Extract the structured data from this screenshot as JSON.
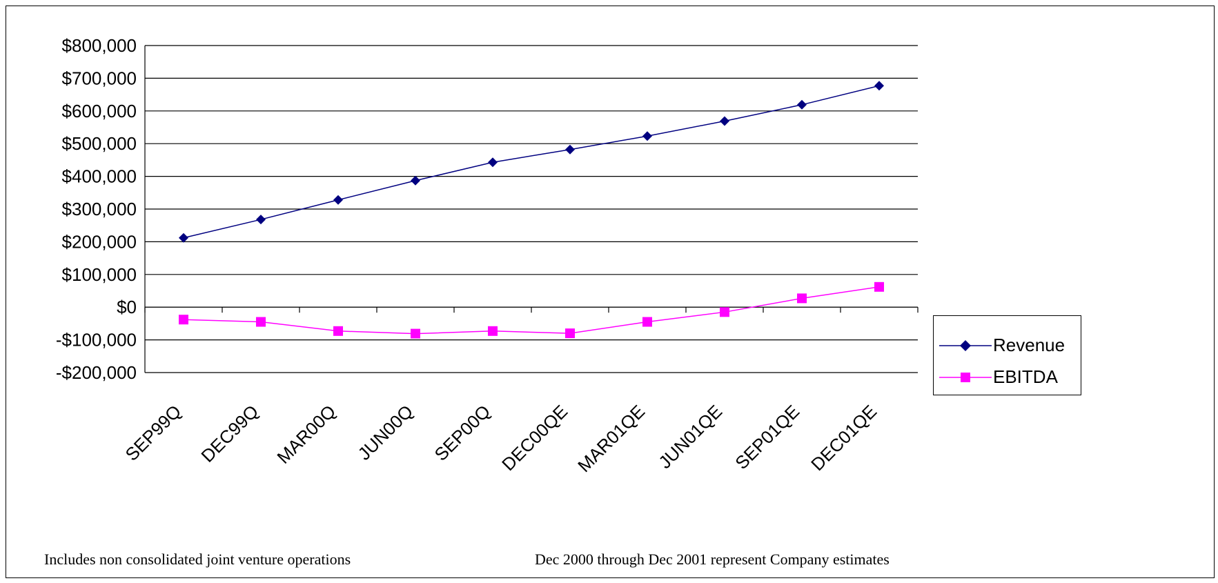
{
  "chart_data": {
    "type": "line",
    "categories": [
      "SEP99Q",
      "DEC99Q",
      "MAR00Q",
      "JUN00Q",
      "SEP00Q",
      "DEC00QE",
      "MAR01QE",
      "JUN01QE",
      "SEP01QE",
      "DEC01QE"
    ],
    "series": [
      {
        "name": "Revenue",
        "color": "#000080",
        "marker": "diamond",
        "values": [
          212000,
          268000,
          328000,
          387000,
          443000,
          482000,
          523000,
          569000,
          619000,
          677000
        ]
      },
      {
        "name": "EBITDA",
        "color": "#FF00FF",
        "marker": "square",
        "values": [
          -38000,
          -45000,
          -73000,
          -81000,
          -73000,
          -80000,
          -45000,
          -15000,
          27000,
          62000
        ]
      }
    ],
    "ylim": [
      -200000,
      800000
    ],
    "yticks": [
      800000,
      700000,
      600000,
      500000,
      400000,
      300000,
      200000,
      100000,
      0,
      -100000,
      -200000
    ],
    "ytick_labels": [
      "$800,000",
      "$700,000",
      "$600,000",
      "$500,000",
      "$400,000",
      "$300,000",
      "$200,000",
      "$100,000",
      "$0",
      "-$100,000",
      "-$200,000"
    ],
    "grid": "horizontal",
    "legend_position": "right"
  },
  "notes": {
    "left": "Includes non consolidated joint venture operations",
    "right": "Dec 2000  through Dec 2001 represent Company estimates"
  },
  "legend": {
    "items": [
      {
        "label": "Revenue",
        "color": "#000080",
        "marker": "diamond"
      },
      {
        "label": "EBITDA",
        "color": "#FF00FF",
        "marker": "square"
      }
    ]
  }
}
